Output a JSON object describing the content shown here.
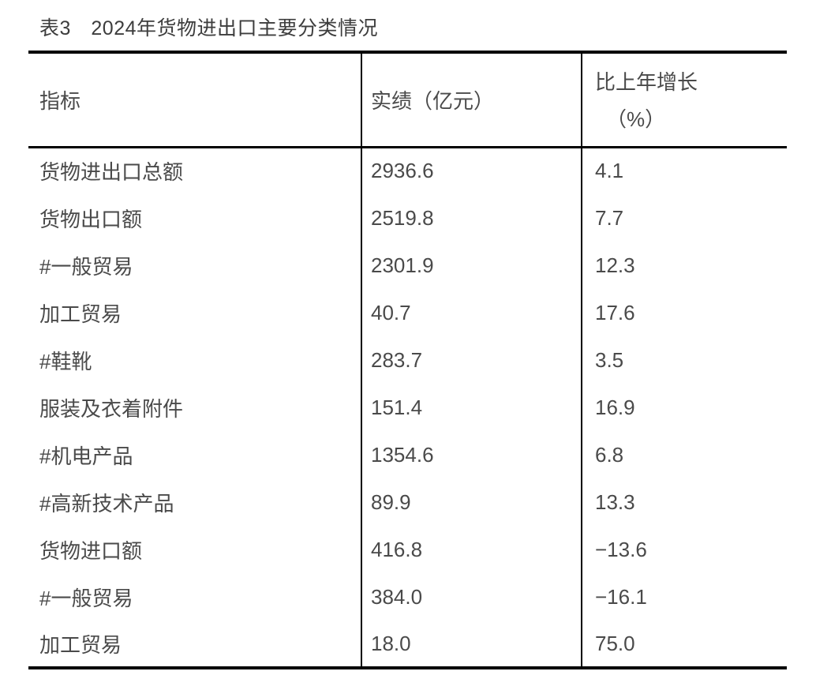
{
  "title": "表3　2024年货物进出口主要分类情况",
  "table": {
    "headers": {
      "indicator": "指标",
      "value": "实绩（亿元）",
      "growth_line1": "比上年增长",
      "growth_line2": "（%）"
    },
    "rows": [
      {
        "indicator": "货物进出口总额",
        "value": "2936.6",
        "growth": "4.1"
      },
      {
        "indicator": "货物出口额",
        "value": "2519.8",
        "growth": "7.7"
      },
      {
        "indicator": "#一般贸易",
        "value": "2301.9",
        "growth": "12.3"
      },
      {
        "indicator": "加工贸易",
        "value": "40.7",
        "growth": "17.6"
      },
      {
        "indicator": "#鞋靴",
        "value": "283.7",
        "growth": "3.5"
      },
      {
        "indicator": "服装及衣着附件",
        "value": "151.4",
        "growth": "16.9"
      },
      {
        "indicator": "#机电产品",
        "value": "1354.6",
        "growth": "6.8"
      },
      {
        "indicator": "#高新技术产品",
        "value": "89.9",
        "growth": "13.3"
      },
      {
        "indicator": "货物进口额",
        "value": "416.8",
        "growth": "−13.6"
      },
      {
        "indicator": "#一般贸易",
        "value": "384.0",
        "growth": "−16.1"
      },
      {
        "indicator": "加工贸易",
        "value": "18.0",
        "growth": "75.0"
      }
    ]
  },
  "chart_data": {
    "type": "table",
    "title": "表3　2024年货物进出口主要分类情况",
    "columns": [
      "指标",
      "实绩（亿元）",
      "比上年增长（%）"
    ],
    "categories": [
      "货物进出口总额",
      "货物出口额",
      "#一般贸易",
      "加工贸易",
      "#鞋靴",
      "服装及衣着附件",
      "#机电产品",
      "#高新技术产品",
      "货物进口额",
      "#一般贸易",
      "加工贸易"
    ],
    "series": [
      {
        "name": "实绩（亿元）",
        "values": [
          2936.6,
          2519.8,
          2301.9,
          40.7,
          283.7,
          151.4,
          1354.6,
          89.9,
          416.8,
          384.0,
          18.0
        ]
      },
      {
        "name": "比上年增长（%）",
        "values": [
          4.1,
          7.7,
          12.3,
          17.6,
          3.5,
          16.9,
          6.8,
          13.3,
          -13.6,
          -16.1,
          75.0
        ]
      }
    ],
    "colors": {
      "text": "#4a4a4a",
      "border": "#000000",
      "background": "#ffffff"
    }
  }
}
